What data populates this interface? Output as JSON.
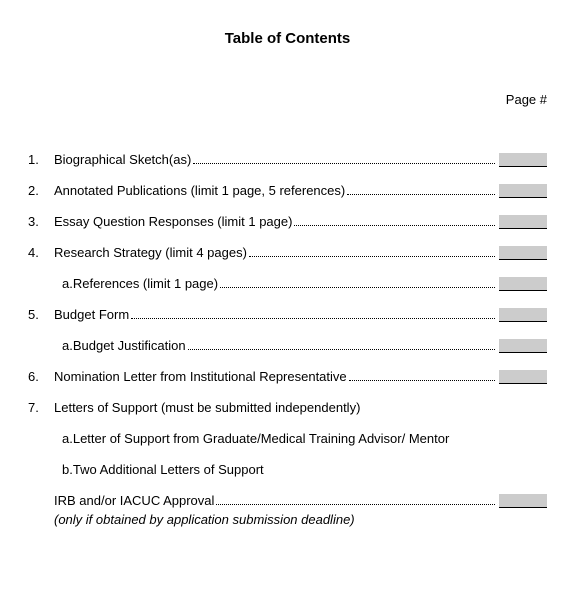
{
  "title": "Table of Contents",
  "page_header": "Page #",
  "entries": [
    {
      "num": "1.",
      "label": "Biographical Sketch(as)",
      "has_field": true
    },
    {
      "num": "2.",
      "label": "Annotated Publications (limit 1 page, 5 references)",
      "has_field": true
    },
    {
      "num": "3.",
      "label": "Essay Question Responses (limit 1 page)",
      "has_field": true
    },
    {
      "num": "4.",
      "label": "Research Strategy (limit 4 pages)",
      "has_field": true
    },
    {
      "sub": "a.",
      "label": "References (limit 1 page)",
      "has_field": true
    },
    {
      "num": "5.",
      "label": "Budget Form",
      "has_field": true
    },
    {
      "sub": "a.",
      "label": "Budget Justification",
      "has_field": true
    },
    {
      "num": "6.",
      "label": "Nomination Letter from Institutional Representative",
      "has_field": true
    },
    {
      "num": "7.",
      "label": "Letters of Support (must be submitted independently)",
      "has_field": false
    },
    {
      "sub": "a.",
      "label": "Letter of Support from Graduate/Medical Training Advisor/ Mentor",
      "has_field": false
    },
    {
      "sub": "b.",
      "label": "Two Additional Letters of Support",
      "has_field": false
    },
    {
      "irb": true,
      "label": "IRB and/or IACUC Approval",
      "has_field": true
    }
  ],
  "note": "(only if obtained by application submission deadline)",
  "field_bg_color": "#cccccc"
}
